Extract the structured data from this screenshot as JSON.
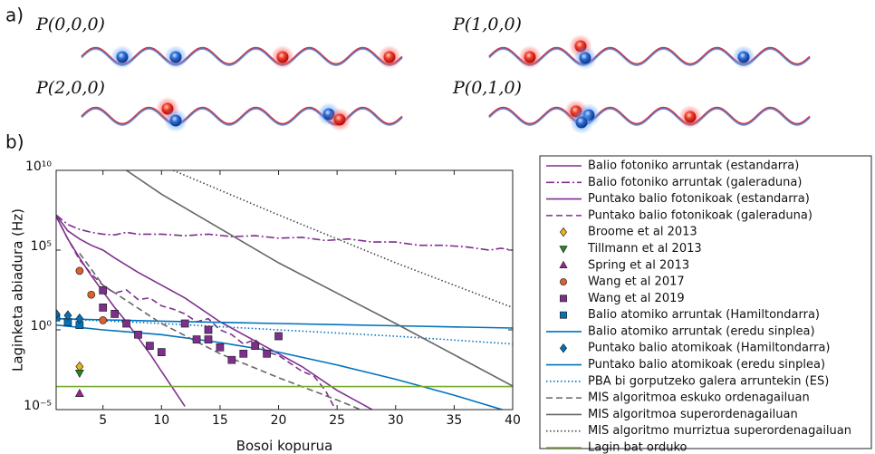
{
  "figure": {
    "panel_a_label": "a)",
    "panel_b_label": "b)",
    "panels": [
      {
        "label": "P(0,0,0)"
      },
      {
        "label": "P(1,0,0)"
      },
      {
        "label": "P(2,0,0)"
      },
      {
        "label": "P(0,1,0)"
      }
    ]
  },
  "chart_data": {
    "type": "line",
    "xlabel": "Bosoi kopurua",
    "ylabel": "Laginketa abiadura (Hz)",
    "xlim": [
      1,
      40
    ],
    "xticks": [
      5,
      10,
      15,
      20,
      25,
      30,
      35,
      40
    ],
    "ylim": [
      1e-05,
      10000000000.0
    ],
    "log_y": true,
    "yticks": [
      {
        "value": 1e-05,
        "label": "10⁻⁵"
      },
      {
        "value": 1,
        "label": "10⁰"
      },
      {
        "value": 100000.0,
        "label": "10⁵"
      },
      {
        "value": 10000000000.0,
        "label": "10¹⁰"
      }
    ],
    "series": [
      {
        "name": "Balio fotoniko arruntak (estandarra)",
        "color": "#7e2f8e",
        "style": "solid",
        "x": [
          1,
          2,
          3,
          4,
          5,
          6,
          8,
          10,
          12,
          15,
          18,
          20,
          22,
          25,
          28,
          30
        ],
        "values": [
          16000000.0,
          1600000.0,
          500000.0,
          200000.0,
          100000.0,
          32000.0,
          4000,
          630,
          100,
          3.2,
          0.2,
          0.032,
          0.005,
          0.00016,
          1e-05,
          1e-06
        ]
      },
      {
        "name": "Balio fotoniko arruntak (galeraduna)",
        "color": "#7e2f8e",
        "style": "dashdot",
        "x": [
          1,
          2,
          3,
          4,
          5,
          6,
          7,
          8,
          10,
          12,
          14,
          16,
          18,
          20,
          22,
          24,
          26,
          28,
          30,
          32,
          34,
          36,
          38,
          39,
          40
        ],
        "values": [
          16000000.0,
          4000000.0,
          2000000.0,
          1300000.0,
          1000000.0,
          900000.0,
          1300000.0,
          1000000.0,
          1000000.0,
          800000.0,
          1000000.0,
          700000.0,
          800000.0,
          560000.0,
          630000.0,
          400000.0,
          500000.0,
          320000.0,
          320000.0,
          200000.0,
          200000.0,
          160000.0,
          100000.0,
          130000.0,
          100000.0
        ]
      },
      {
        "name": "Puntako balio fotonikoak (estandarra)",
        "color": "#7e2f8e",
        "style": "solid",
        "x": [
          1,
          2,
          3,
          4,
          5,
          6,
          7,
          8,
          9,
          10,
          11,
          12
        ],
        "values": [
          13000000.0,
          500000.0,
          32000.0,
          2500,
          250,
          25,
          3.2,
          0.32,
          0.032,
          0.0025,
          0.0002,
          1.6e-05
        ]
      },
      {
        "name": "Puntako balio fotonikoak (galeraduna)",
        "color": "#7e2f8e",
        "style": "dashed",
        "x": [
          1,
          2,
          3,
          4,
          5,
          6,
          7,
          8,
          9,
          10,
          11,
          12,
          13,
          14,
          15,
          16,
          17,
          18,
          19,
          20,
          21,
          22,
          23,
          24,
          25
        ],
        "values": [
          13000000.0,
          500000.0,
          25000.0,
          3200,
          630,
          200,
          320,
          80,
          100,
          32,
          20,
          10,
          3.2,
          5,
          1,
          0.5,
          0.13,
          0.25,
          0.04,
          0.025,
          0.008,
          0.0025,
          0.0013,
          0.00016,
          6.3e-06
        ]
      },
      {
        "name": "Broome et al 2013",
        "color": "#edb120",
        "marker": "diamond",
        "x": [
          3
        ],
        "values": [
          0.005
        ]
      },
      {
        "name": "Tillmann et al 2013",
        "color": "#1e8c1e",
        "marker": "triangle-down",
        "x": [
          3
        ],
        "values": [
          0.002
        ]
      },
      {
        "name": "Spring et al 2013",
        "color": "#a020a0",
        "marker": "triangle-up",
        "x": [
          3
        ],
        "values": [
          0.0001
        ]
      },
      {
        "name": "Wang et al 2017",
        "color": "#e0602a",
        "marker": "circle",
        "x": [
          3,
          4,
          5
        ],
        "values": [
          5000,
          160,
          4
        ]
      },
      {
        "name": "Wang et al 2019",
        "color": "#7e2f8e",
        "marker": "square",
        "x": [
          5,
          5,
          6,
          7,
          8,
          9,
          10,
          12,
          13,
          14,
          14,
          15,
          16,
          17,
          18,
          19,
          20
        ],
        "values": [
          300,
          25,
          10,
          2.5,
          0.5,
          0.1,
          0.04,
          2.5,
          0.25,
          1,
          0.25,
          0.08,
          0.013,
          0.032,
          0.1,
          0.032,
          0.4
        ]
      },
      {
        "name": "Balio atomiko arruntak (Hamiltondarra)",
        "color": "#0072bd",
        "marker": "square",
        "x": [
          1,
          2,
          3
        ],
        "values": [
          6,
          3,
          2
        ]
      },
      {
        "name": "Balio atomiko arruntak (eredu sinplea)",
        "color": "#0072bd",
        "style": "solid",
        "x": [
          1,
          10,
          20,
          30,
          40
        ],
        "values": [
          5,
          3.5,
          2.5,
          1.8,
          1.3
        ]
      },
      {
        "name": "Puntako balio atomikoak (Hamiltondarra)",
        "color": "#0072bd",
        "marker": "diamond",
        "x": [
          1,
          2,
          3
        ],
        "values": [
          10,
          8,
          5
        ]
      },
      {
        "name": "Puntako balio atomikoak (eredu sinplea)",
        "color": "#0072bd",
        "style": "solid",
        "x": [
          1,
          5,
          10,
          15,
          20,
          25,
          30,
          35,
          40
        ],
        "values": [
          2,
          1,
          0.5,
          0.16,
          0.04,
          0.0063,
          0.0008,
          8e-05,
          6.3e-06
        ]
      },
      {
        "name": "PBA bi gorputzeko galera arruntekin (ES)",
        "color": "#0072bd",
        "style": "dotted",
        "x": [
          1,
          10,
          20,
          30,
          40
        ],
        "values": [
          5,
          2.5,
          1,
          0.4,
          0.13
        ]
      },
      {
        "name": "MIS algoritmoa eskuko ordenagailuan",
        "color": "#666666",
        "style": "dashed",
        "x": [
          3,
          5,
          10,
          15,
          20,
          25,
          27
        ],
        "values": [
          63000.0,
          630,
          2.5,
          0.032,
          0.001,
          4e-05,
          1e-05
        ]
      },
      {
        "name": "MIS algoritmoa superordenagailuan",
        "color": "#666666",
        "style": "solid",
        "x": [
          7,
          10,
          20,
          30,
          40
        ],
        "values": [
          10000000000.0,
          320000000.0,
          16000.0,
          2.5,
          0.0003
        ]
      },
      {
        "name": "MIS algoritmo murriztua superordenagailuan",
        "color": "#444444",
        "style": "dotted",
        "x": [
          11,
          20,
          30,
          40
        ],
        "values": [
          10000000000.0,
          16000000.0,
          16000.0,
          25
        ]
      },
      {
        "name": "Lagin bat orduko",
        "color": "#77ac30",
        "style": "solid",
        "x": [
          1,
          40
        ],
        "values": [
          0.00028,
          0.00028
        ]
      }
    ]
  }
}
